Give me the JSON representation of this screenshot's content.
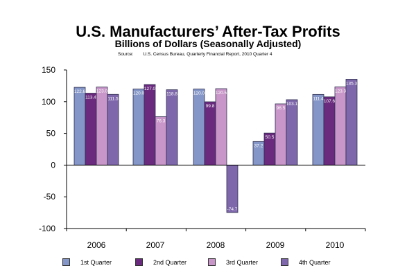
{
  "chart_data": {
    "type": "bar",
    "title": "U.S. Manufacturers’ After-Tax Profits",
    "subtitle": "Billions of Dollars (Seasonally Adjusted)",
    "source_label": "Source:",
    "source_text": "U.S. Census Bureau, Quarterly Financial Report, 2010 Quarter 4",
    "categories": [
      "2006",
      "2007",
      "2008",
      "2009",
      "2010"
    ],
    "ylim": [
      -100,
      150
    ],
    "yticks": [
      150,
      100,
      50,
      0,
      -50,
      -100
    ],
    "ytick_labels": [
      "150",
      "100",
      "50",
      "0",
      "-50",
      "-100"
    ],
    "grid": false,
    "legend_position": "bottom",
    "series": [
      {
        "name": "1st Quarter",
        "color": "#8496c8",
        "values": [
          122.6,
          120.0,
          120.0,
          37.2,
          111.4
        ],
        "labels": [
          "122.6",
          "120.0",
          "120.0",
          "37.2",
          "111.4"
        ]
      },
      {
        "name": "2nd Quarter",
        "color": "#6a2a7e",
        "values": [
          113.4,
          127.0,
          99.8,
          50.5,
          107.6
        ],
        "labels": [
          "113.4",
          "127.0",
          "99.8",
          "50.5",
          "107.6"
        ]
      },
      {
        "name": "3rd Quarter",
        "color": "#c896c8",
        "values": [
          123.0,
          76.3,
          120.5,
          96.5,
          123.3
        ],
        "labels": [
          "123.0",
          "76.3",
          "120.5",
          "96.5",
          "123.3"
        ]
      },
      {
        "name": "4th Quarter",
        "color": "#7f67ac",
        "values": [
          111.5,
          118.8,
          -74.7,
          103.1,
          135.3
        ],
        "labels": [
          "111.5",
          "118.8",
          "-74.7",
          "103.1",
          "135.3"
        ]
      }
    ]
  }
}
